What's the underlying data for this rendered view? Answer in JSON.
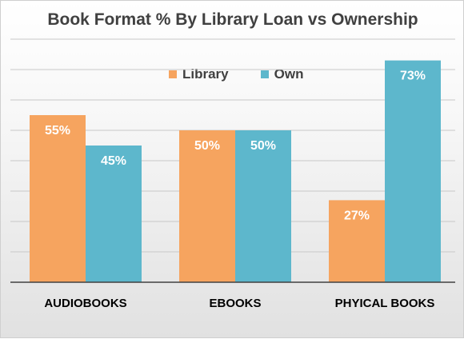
{
  "chart_data": {
    "type": "bar",
    "title": "Book Format % By Library Loan vs Ownership",
    "categories": [
      "AUDIOBOOKS",
      "EBOOKS",
      "PHYICAL BOOKS"
    ],
    "series": [
      {
        "name": "Library",
        "values": [
          55,
          50,
          27
        ],
        "labels": [
          "55%",
          "50%",
          "27%"
        ],
        "color": "#f6a45f"
      },
      {
        "name": "Own",
        "values": [
          45,
          50,
          73
        ],
        "labels": [
          "45%",
          "50%",
          "73%"
        ],
        "color": "#5db7cc"
      }
    ],
    "ylim": [
      0,
      80
    ],
    "gridlines": true,
    "legend_position": "top"
  }
}
